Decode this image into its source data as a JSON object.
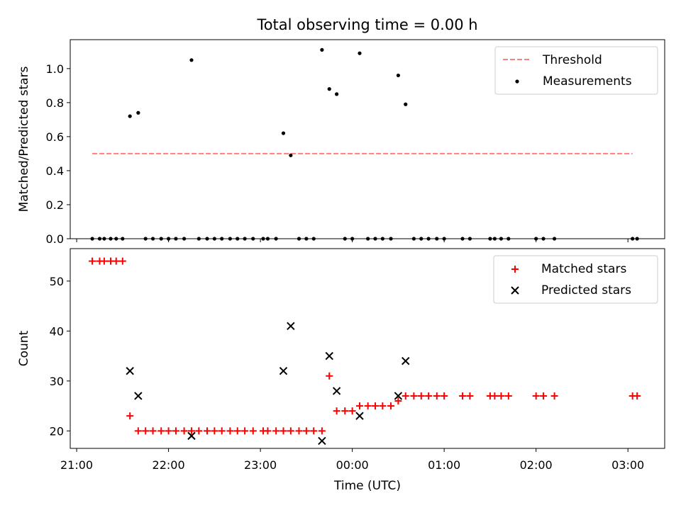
{
  "title": "Total observing time = 0.00 h",
  "xlabel": "Time (UTC)",
  "x_ticks": [
    "21:00",
    "22:00",
    "23:00",
    "00:00",
    "01:00",
    "02:00",
    "03:00"
  ],
  "colors": {
    "threshold": "#ff7f7f",
    "measurements": "#000000",
    "matched": "#ff0000",
    "predicted": "#000000"
  },
  "chart_data": [
    {
      "type": "scatter",
      "ylabel": "Matched/Predicted stars",
      "xlim": [
        20.93,
        27.4
      ],
      "ylim": [
        0,
        1.17
      ],
      "y_ticks": [
        0.0,
        0.2,
        0.4,
        0.6,
        0.8,
        1.0
      ],
      "legend": {
        "position": "top-right",
        "entries": [
          "Threshold",
          "Measurements"
        ]
      },
      "threshold": {
        "name": "Threshold",
        "value": 0.5,
        "x_range": [
          21.17,
          27.05
        ],
        "style": "dashed"
      },
      "series": [
        {
          "name": "Measurements",
          "points": [
            [
              21.17,
              0
            ],
            [
              21.25,
              0
            ],
            [
              21.3,
              0
            ],
            [
              21.37,
              0
            ],
            [
              21.43,
              0
            ],
            [
              21.5,
              0
            ],
            [
              21.58,
              0.72
            ],
            [
              21.67,
              0.74
            ],
            [
              21.75,
              0
            ],
            [
              21.83,
              0
            ],
            [
              21.92,
              0
            ],
            [
              22.0,
              0
            ],
            [
              22.08,
              0
            ],
            [
              22.17,
              0
            ],
            [
              22.25,
              1.05
            ],
            [
              22.33,
              0
            ],
            [
              22.42,
              0
            ],
            [
              22.5,
              0
            ],
            [
              22.58,
              0
            ],
            [
              22.67,
              0
            ],
            [
              22.75,
              0
            ],
            [
              22.83,
              0
            ],
            [
              22.92,
              0
            ],
            [
              23.03,
              0
            ],
            [
              23.08,
              0
            ],
            [
              23.17,
              0
            ],
            [
              23.25,
              0.62
            ],
            [
              23.33,
              0.49
            ],
            [
              23.42,
              0
            ],
            [
              23.5,
              0
            ],
            [
              23.58,
              0
            ],
            [
              23.67,
              1.11
            ],
            [
              23.75,
              0.88
            ],
            [
              23.83,
              0.85
            ],
            [
              23.92,
              0
            ],
            [
              24.0,
              0
            ],
            [
              24.08,
              1.09
            ],
            [
              24.17,
              0
            ],
            [
              24.25,
              0
            ],
            [
              24.33,
              0
            ],
            [
              24.42,
              0
            ],
            [
              24.5,
              0.96
            ],
            [
              24.58,
              0.79
            ],
            [
              24.67,
              0
            ],
            [
              24.75,
              0
            ],
            [
              24.83,
              0
            ],
            [
              24.92,
              0
            ],
            [
              25.0,
              0
            ],
            [
              25.2,
              0
            ],
            [
              25.28,
              0
            ],
            [
              25.5,
              0
            ],
            [
              25.55,
              0
            ],
            [
              25.62,
              0
            ],
            [
              25.7,
              0
            ],
            [
              26.0,
              0
            ],
            [
              26.08,
              0
            ],
            [
              26.2,
              0
            ],
            [
              27.05,
              0
            ],
            [
              27.1,
              0
            ]
          ]
        }
      ]
    },
    {
      "type": "scatter",
      "ylabel": "Count",
      "xlim": [
        20.93,
        27.4
      ],
      "ylim": [
        16.5,
        56.5
      ],
      "y_ticks": [
        20,
        30,
        40,
        50
      ],
      "legend": {
        "position": "top-right",
        "entries": [
          "Matched stars",
          "Predicted stars"
        ]
      },
      "series": [
        {
          "name": "Matched stars",
          "marker": "plus",
          "points": [
            [
              21.17,
              54
            ],
            [
              21.25,
              54
            ],
            [
              21.3,
              54
            ],
            [
              21.37,
              54
            ],
            [
              21.43,
              54
            ],
            [
              21.5,
              54
            ],
            [
              21.58,
              23
            ],
            [
              21.67,
              20
            ],
            [
              21.75,
              20
            ],
            [
              21.83,
              20
            ],
            [
              21.92,
              20
            ],
            [
              22.0,
              20
            ],
            [
              22.08,
              20
            ],
            [
              22.17,
              20
            ],
            [
              22.25,
              20
            ],
            [
              22.33,
              20
            ],
            [
              22.42,
              20
            ],
            [
              22.5,
              20
            ],
            [
              22.58,
              20
            ],
            [
              22.67,
              20
            ],
            [
              22.75,
              20
            ],
            [
              22.83,
              20
            ],
            [
              22.92,
              20
            ],
            [
              23.03,
              20
            ],
            [
              23.08,
              20
            ],
            [
              23.17,
              20
            ],
            [
              23.25,
              20
            ],
            [
              23.33,
              20
            ],
            [
              23.42,
              20
            ],
            [
              23.5,
              20
            ],
            [
              23.58,
              20
            ],
            [
              23.67,
              20
            ],
            [
              23.75,
              31
            ],
            [
              23.83,
              24
            ],
            [
              23.92,
              24
            ],
            [
              24.0,
              24
            ],
            [
              24.08,
              25
            ],
            [
              24.17,
              25
            ],
            [
              24.25,
              25
            ],
            [
              24.33,
              25
            ],
            [
              24.42,
              25
            ],
            [
              24.5,
              26
            ],
            [
              24.58,
              27
            ],
            [
              24.67,
              27
            ],
            [
              24.75,
              27
            ],
            [
              24.83,
              27
            ],
            [
              24.92,
              27
            ],
            [
              25.0,
              27
            ],
            [
              25.2,
              27
            ],
            [
              25.28,
              27
            ],
            [
              25.5,
              27
            ],
            [
              25.55,
              27
            ],
            [
              25.62,
              27
            ],
            [
              25.7,
              27
            ],
            [
              26.0,
              27
            ],
            [
              26.08,
              27
            ],
            [
              26.2,
              27
            ],
            [
              27.05,
              27
            ],
            [
              27.1,
              27
            ]
          ]
        },
        {
          "name": "Predicted stars",
          "marker": "x",
          "points": [
            [
              21.58,
              32
            ],
            [
              21.67,
              27
            ],
            [
              22.25,
              19
            ],
            [
              23.25,
              32
            ],
            [
              23.33,
              41
            ],
            [
              23.67,
              18
            ],
            [
              23.75,
              35
            ],
            [
              23.83,
              28
            ],
            [
              24.08,
              23
            ],
            [
              24.5,
              27
            ],
            [
              24.58,
              34
            ]
          ]
        }
      ]
    }
  ]
}
